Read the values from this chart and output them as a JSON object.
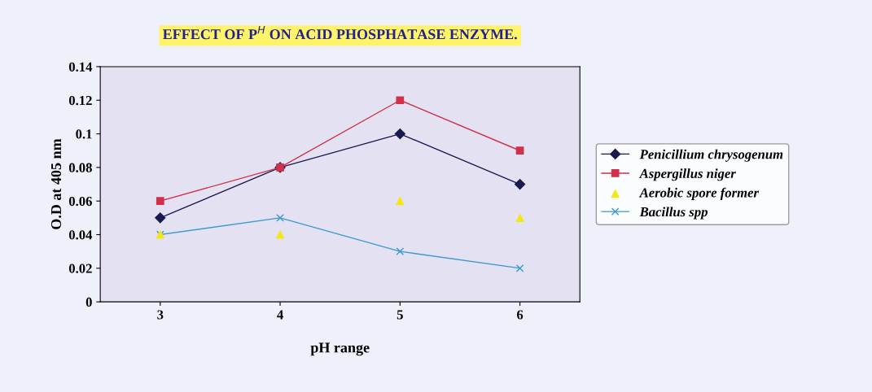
{
  "chart_data": {
    "type": "line",
    "title": "EFFECT OF P$^{H}$ ON ACID PHOSPHATASE ENZYME.",
    "xlabel": "pH range",
    "ylabel": "O.D at 405 nm",
    "categories": [
      "3",
      "4",
      "5",
      "6"
    ],
    "series": [
      {
        "name": "Penicillium chrysogenum",
        "color": "#1a1a50",
        "marker": "diamond",
        "values": [
          0.05,
          0.08,
          0.1,
          0.07
        ]
      },
      {
        "name": "Aspergillus niger",
        "color": "#d0304a",
        "marker": "square",
        "values": [
          0.06,
          0.08,
          0.12,
          0.09
        ]
      },
      {
        "name": "Aerobic spore former",
        "color": "#f5e61a",
        "marker": "triangle",
        "type": "scatter",
        "values": [
          0.04,
          0.04,
          0.06,
          0.05
        ]
      },
      {
        "name": "Bacillus spp",
        "color": "#3a9ad0",
        "marker": "cross",
        "values": [
          0.04,
          0.05,
          0.03,
          0.02
        ]
      }
    ],
    "ylim": [
      0,
      0.14
    ],
    "yticks": [
      0,
      0.02,
      0.04,
      0.06,
      0.08,
      0.1,
      0.12,
      0.14
    ],
    "legend": "right",
    "grid": false
  }
}
